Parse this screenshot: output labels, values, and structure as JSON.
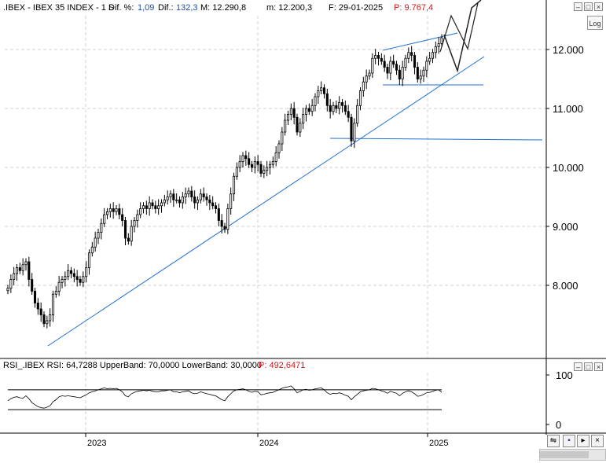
{
  "header": {
    "symbol": ".IBEX - IBEX 35 INDEX - 1 S",
    "dif_pct_label": "Dif. %:",
    "dif_pct_value": "1,09",
    "dif_label": "Dif.:",
    "dif_value": "132,3",
    "max_label": "M: 12.290,8",
    "min_label": "m: 12.200,3",
    "date_label": "F: 29-01-2025",
    "p_label": "P: 9.767,4"
  },
  "log_button": "Log",
  "rsi_header": {
    "text": "RSI_.IBEX RSI: 64,7288 UpperBand: 70,0000 LowerBand: 30,0000",
    "p_label": "P: 492,6471"
  },
  "window_buttons": [
    "–",
    "□",
    "×"
  ],
  "colors": {
    "candle_fill": "#ffffff",
    "candle_line": "#000000",
    "trendline": "#1f6fd0",
    "grid": "#d0d0d0",
    "pen": "#202020"
  },
  "chart_data": [
    {
      "type": "candlestick",
      "ylim": [
        7000,
        12800
      ],
      "y_ticks": [
        "8.000",
        "9.000",
        "10.000",
        "11.000",
        "12.000"
      ],
      "y_tick_values": [
        8000,
        9000,
        10000,
        11000,
        12000
      ],
      "x_ticks": [
        "2023",
        "2024",
        "2025"
      ],
      "grid": true,
      "closes": [
        7950,
        8100,
        8200,
        8300,
        8250,
        8350,
        8400,
        8100,
        7900,
        7700,
        7600,
        7500,
        7350,
        7400,
        7500,
        7850,
        7900,
        8050,
        8100,
        8150,
        8250,
        8200,
        8150,
        8100,
        8050,
        8150,
        8300,
        8550,
        8650,
        8800,
        8900,
        9050,
        9200,
        9250,
        9300,
        9250,
        9300,
        9200,
        9100,
        8800,
        8750,
        9000,
        9100,
        9200,
        9300,
        9350,
        9300,
        9400,
        9350,
        9300,
        9350,
        9400,
        9450,
        9500,
        9550,
        9450,
        9450,
        9400,
        9500,
        9550,
        9600,
        9500,
        9400,
        9450,
        9550,
        9500,
        9450,
        9400,
        9350,
        9300,
        9100,
        9000,
        8950,
        9300,
        9550,
        9850,
        10000,
        10100,
        10200,
        10150,
        10050,
        10000,
        10100,
        10050,
        9900,
        9950,
        10000,
        10050,
        10100,
        10250,
        10400,
        10600,
        10800,
        10900,
        11000,
        10850,
        10600,
        10750,
        10900,
        11000,
        10950,
        11050,
        11200,
        11300,
        11350,
        11250,
        11050,
        10950,
        11050,
        11000,
        11100,
        11050,
        10950,
        10850,
        10450,
        10750,
        11050,
        11300,
        11450,
        11550,
        11600,
        11850,
        11900,
        11850,
        11800,
        11700,
        11600,
        11800,
        11750,
        11650,
        11500,
        11700,
        11850,
        11950,
        11900,
        11700,
        11500,
        11550,
        11650,
        11800,
        11850,
        11950,
        12050,
        12100,
        12200
      ]
    },
    {
      "type": "line",
      "name": "RSI",
      "ylim": [
        0,
        100
      ],
      "y_ticks": [
        "100",
        "0"
      ],
      "y_tick_values": [
        100,
        0
      ],
      "bands": [
        70,
        30
      ],
      "values": [
        48,
        52,
        55,
        56,
        54,
        53,
        58,
        52,
        44,
        40,
        36,
        34,
        33,
        35,
        38,
        46,
        50,
        56,
        58,
        57,
        58,
        57,
        56,
        55,
        54,
        57,
        60,
        64,
        66,
        68,
        70,
        72,
        74,
        72,
        73,
        72,
        73,
        70,
        66,
        58,
        56,
        62,
        65,
        67,
        68,
        69,
        68,
        69,
        67,
        66,
        66,
        68,
        68,
        69,
        70,
        66,
        66,
        64,
        66,
        67,
        68,
        64,
        62,
        63,
        66,
        64,
        62,
        61,
        59,
        58,
        54,
        50,
        48,
        56,
        62,
        68,
        70,
        71,
        72,
        70,
        67,
        65,
        67,
        66,
        60,
        61,
        63,
        64,
        65,
        68,
        70,
        73,
        75,
        76,
        78,
        72,
        64,
        67,
        70,
        71,
        69,
        70,
        72,
        73,
        74,
        70,
        64,
        61,
        63,
        62,
        64,
        62,
        59,
        57,
        50,
        56,
        61,
        66,
        68,
        69,
        70,
        73,
        72,
        70,
        68,
        66,
        63,
        67,
        65,
        63,
        58,
        63,
        66,
        68,
        66,
        62,
        57,
        58,
        61,
        64,
        65,
        67,
        69,
        70,
        65
      ]
    }
  ]
}
